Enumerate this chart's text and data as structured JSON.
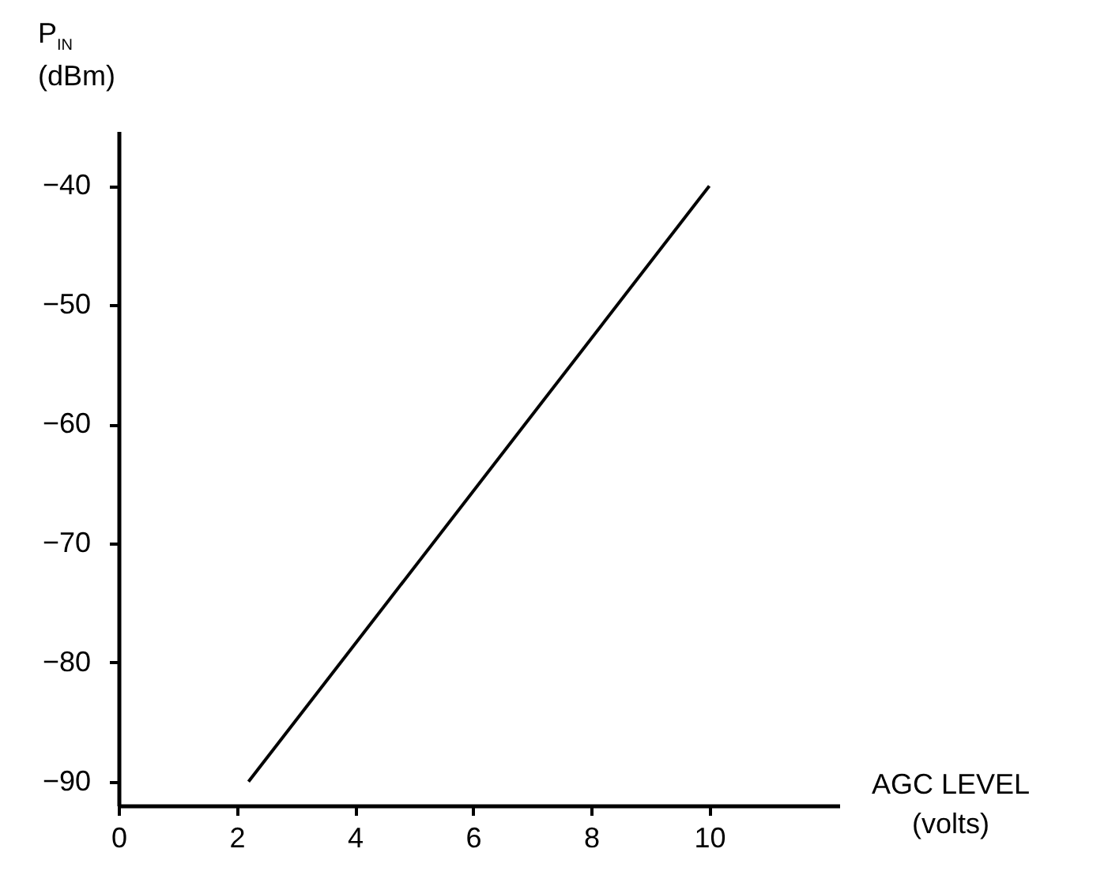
{
  "chart_data": {
    "type": "line",
    "xlabel": "AGC LEVEL\n(volts)",
    "ylabel": "P$_{IN}$\n(dBm)",
    "x": [
      2.2,
      10
    ],
    "series": [
      {
        "color": "#000000",
        "values": [
          -90,
          -40
        ]
      }
    ],
    "xlim": [
      0,
      12.2
    ],
    "ylim": [
      -92,
      -35.4
    ],
    "xticks": [
      0,
      2,
      4,
      6,
      8,
      10
    ],
    "yticks": [
      -90,
      -80,
      -70,
      -60,
      -50,
      -40
    ],
    "grid": false,
    "legend": false,
    "marker": "none",
    "line_style": "solid"
  }
}
